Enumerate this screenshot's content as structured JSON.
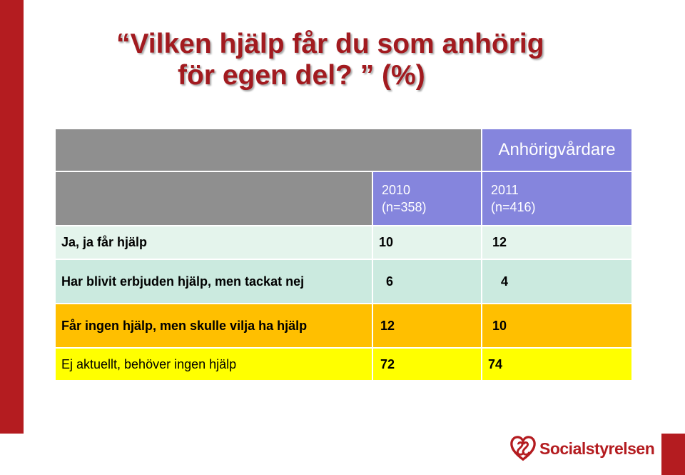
{
  "slide": {
    "title_line1": "“Vilken hjälp får du som anhörig",
    "title_line2": "för egen del? ” (%)"
  },
  "colors": {
    "accent_red": "#b41c20",
    "header_gray": "#8f8f8f",
    "header_blue": "#8585dd",
    "row1_bg": "#e4f4ec",
    "row2_bg": "#cbeadf",
    "row3_bg": "#ffbf00",
    "row4_bg": "#ffff00"
  },
  "chart_data": {
    "type": "table",
    "group_header": "Anhörigvårdare",
    "columns": [
      {
        "year": "2010",
        "n": "(n=358)"
      },
      {
        "year": "2011",
        "n": "(n=416)"
      }
    ],
    "rows": [
      {
        "label": "Ja, ja får hjälp",
        "values": [
          "10",
          "12"
        ]
      },
      {
        "label": "Har blivit erbjuden hjälp, men tackat nej",
        "values": [
          "6",
          "4"
        ]
      },
      {
        "label": "Får ingen hjälp, men skulle vilja ha hjälp",
        "values": [
          "12",
          "10"
        ]
      },
      {
        "label": "Ej aktuellt, behöver ingen hjälp",
        "values": [
          "72",
          "74"
        ]
      }
    ]
  },
  "logo": {
    "text": "Socialstyrelsen",
    "icon": "socialstyrelsen-heart-logo-icon"
  }
}
